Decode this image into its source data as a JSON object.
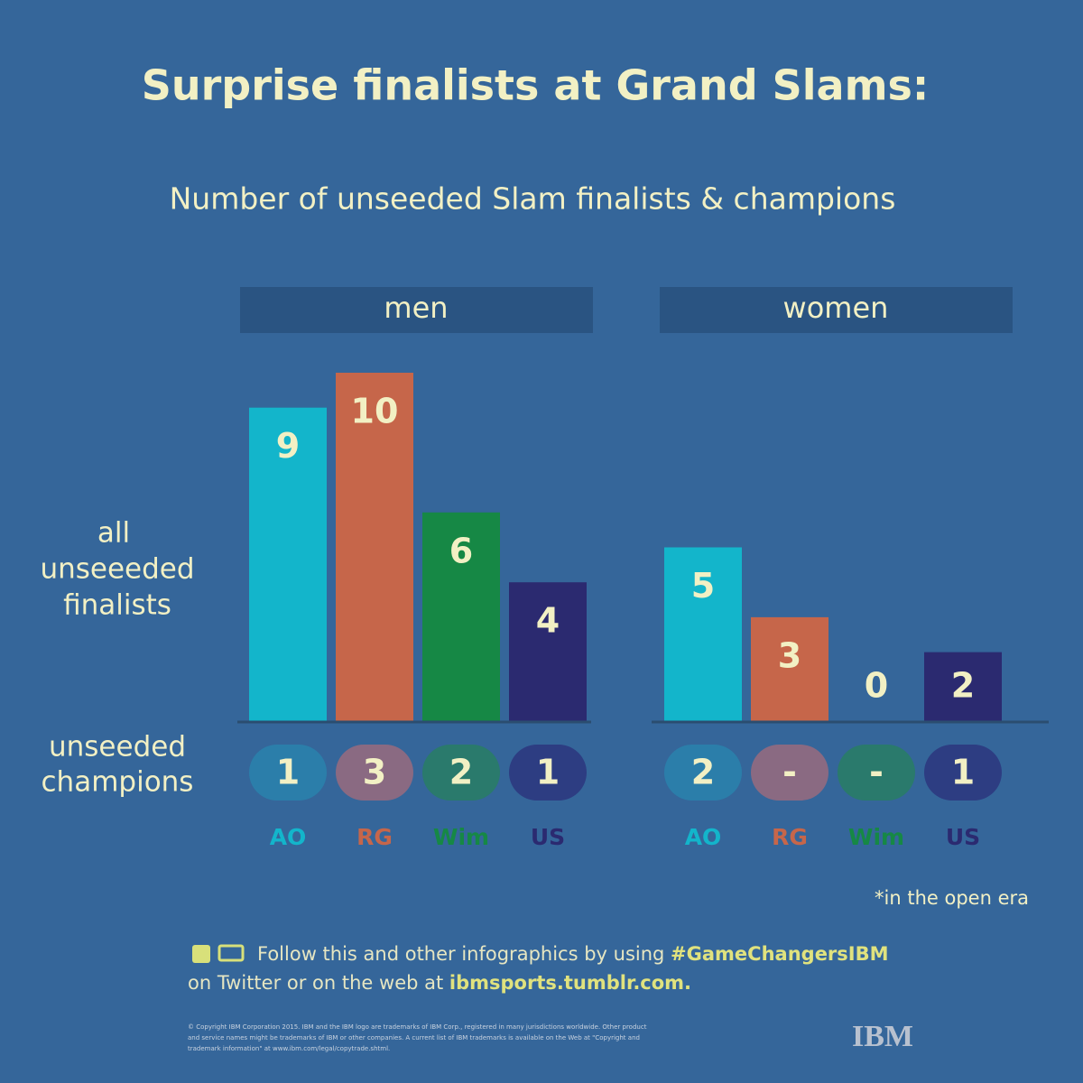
{
  "title": "Surprise finalists at Grand Slams:",
  "subtitle": "Number of unseeded Slam finalists & champions",
  "row_labels": {
    "finalists": [
      "all",
      "unseeeded",
      "finalists"
    ],
    "champions": [
      "unseeded",
      "champions"
    ]
  },
  "chart_data": [
    {
      "type": "bar",
      "title": "men",
      "categories": [
        "AO",
        "RG",
        "Wim",
        "US"
      ],
      "colors": [
        "#13b5cb",
        "#c6664a",
        "#168845",
        "#2b2a70"
      ],
      "champion_colors": [
        "#2b7eaa",
        "#8a6a82",
        "#2a7a6c",
        "#2d3d82"
      ],
      "values": [
        9,
        10,
        6,
        4
      ],
      "champion_values": [
        1,
        3,
        2,
        1
      ]
    },
    {
      "type": "bar",
      "title": "women",
      "categories": [
        "AO",
        "RG",
        "Wim",
        "US"
      ],
      "colors": [
        "#13b5cb",
        "#c6664a",
        "#168845",
        "#2b2a70"
      ],
      "champion_colors": [
        "#2b7eaa",
        "#8a6a82",
        "#2a7a6c",
        "#2d3d82"
      ],
      "values": [
        5,
        3,
        0,
        2
      ],
      "champion_values": [
        2,
        null,
        null,
        1
      ],
      "champion_value_labels": [
        "2",
        "-",
        "-",
        "1"
      ]
    }
  ],
  "footnote": "*in the open era",
  "footer": {
    "line1": "Follow this and other infographics by using ",
    "hashtag": "#GameChangersIBM",
    "line2": "on Twitter or on the web at ",
    "url": "ibmsports.tumblr.com."
  },
  "copyright": [
    "© Copyright IBM Corporation 2015. IBM and the IBM logo are trademarks of IBM Corp., registered in many jurisdictions worldwide. Other product",
    "and service names might be trademarks of IBM or other companies. A current list of IBM trademarks is available on the Web at \"Copyright and",
    "trademark information\" at www.ibm.com/legal/copytrade.shtml."
  ],
  "logo": "IBM"
}
